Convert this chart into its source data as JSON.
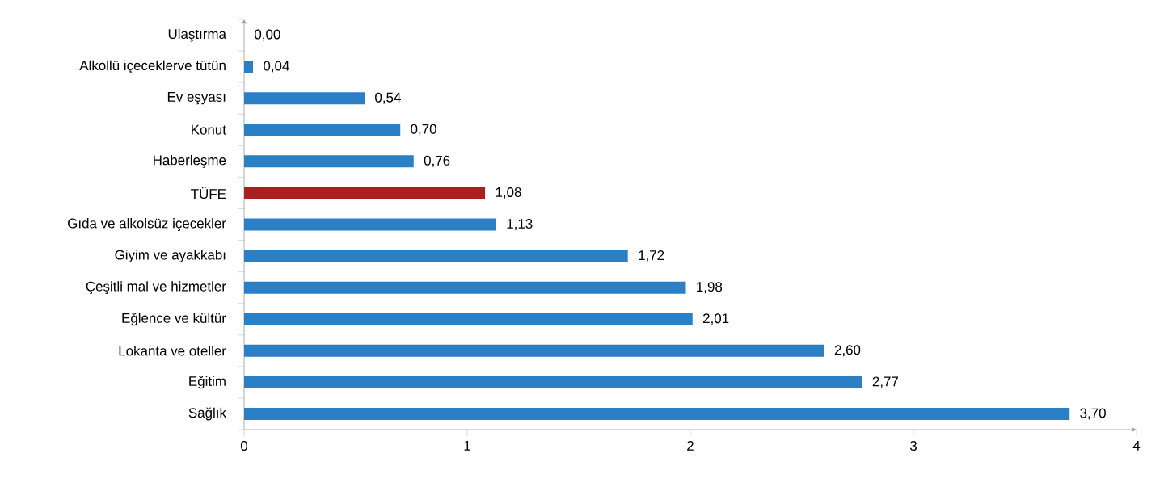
{
  "chart_data": {
    "type": "bar",
    "orientation": "horizontal",
    "categories": [
      "Ulaştırma",
      "Alkollü içeceklerve tütün",
      "Ev eşyası",
      "Konut",
      "Haberleşme",
      "TÜFE",
      "Gıda ve alkolsüz içecekler",
      "Giyim ve ayakkabı",
      "Çeşitli mal ve hizmetler",
      "Eğlence ve kültür",
      "Lokanta ve oteller",
      "Eğitim",
      "Sağlık"
    ],
    "values": [
      0.0,
      0.04,
      0.54,
      0.7,
      0.76,
      1.08,
      1.13,
      1.72,
      1.98,
      2.01,
      2.6,
      2.77,
      3.7
    ],
    "colors": [
      "#2a7fc5",
      "#2a7fc5",
      "#2a7fc5",
      "#2a7fc5",
      "#2a7fc5",
      "#a8201f",
      "#2a7fc5",
      "#2a7fc5",
      "#2a7fc5",
      "#2a7fc5",
      "#2a7fc5",
      "#2a7fc5",
      "#2a7fc5"
    ],
    "value_labels": [
      "0,00",
      "0,04",
      "0,54",
      "0,70",
      "0,76",
      "1,08",
      "1,13",
      "1,72",
      "1,98",
      "2,01",
      "2,60",
      "2,77",
      "3,70"
    ],
    "xlim": [
      0,
      4
    ],
    "xticks": [
      0,
      1,
      2,
      3,
      4
    ]
  }
}
